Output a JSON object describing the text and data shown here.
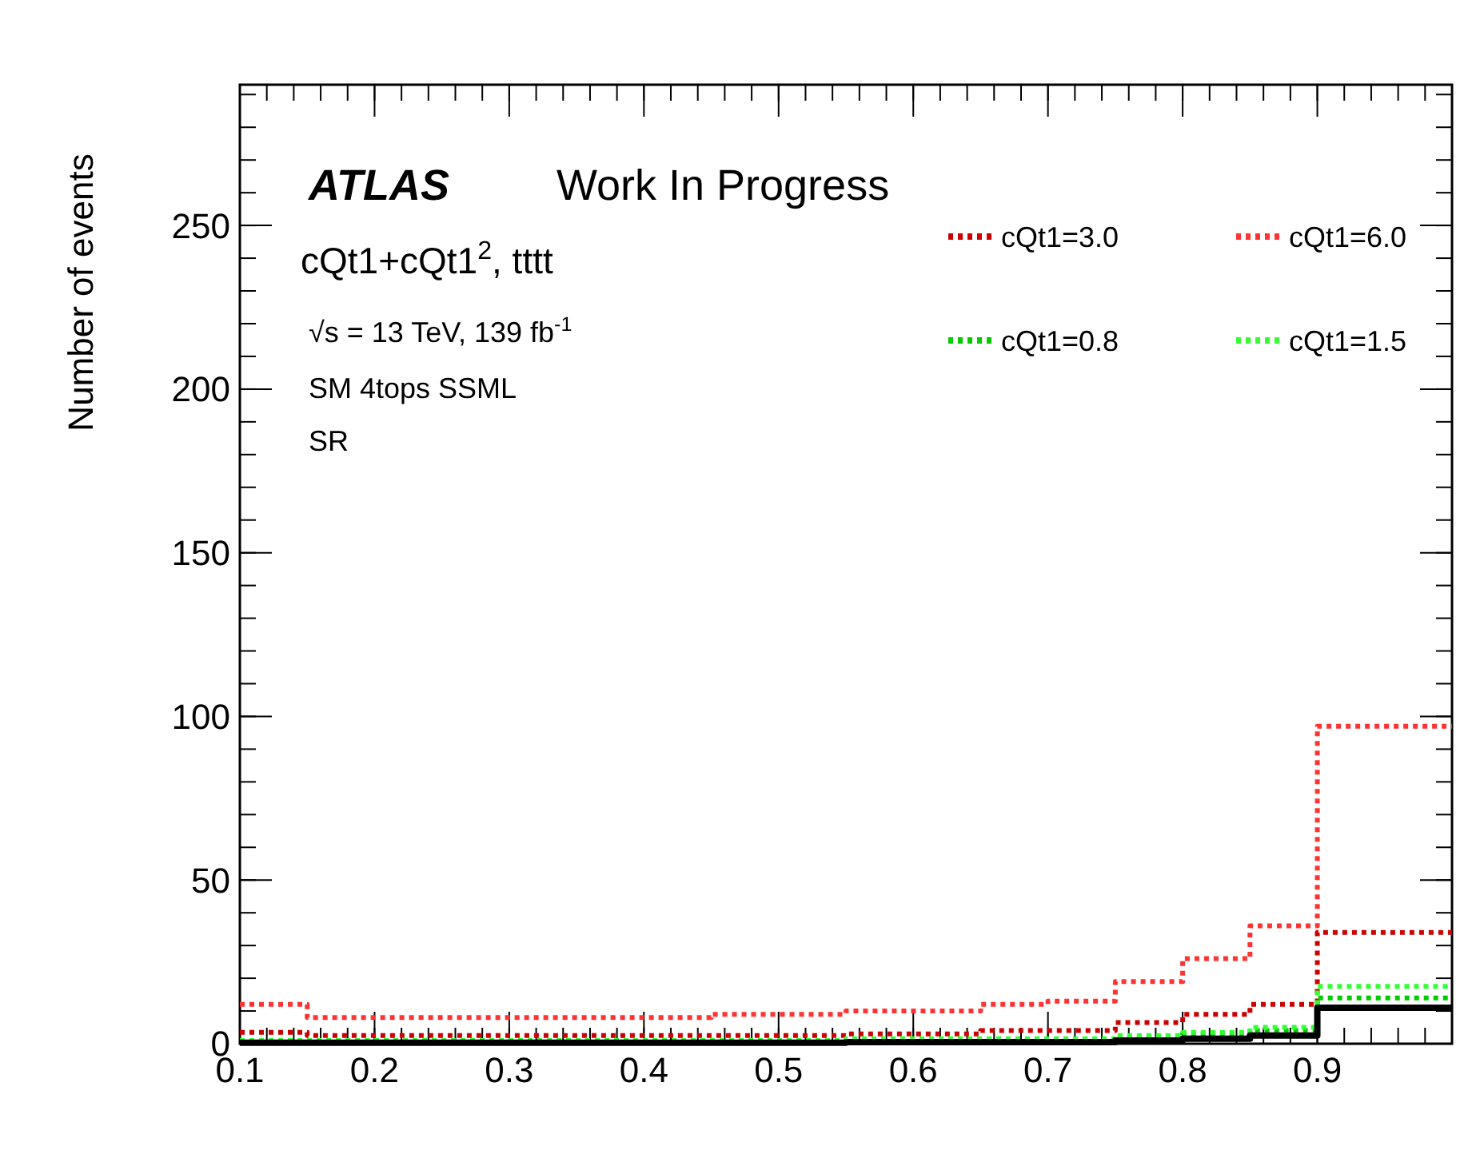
{
  "chart_data": {
    "type": "histogram",
    "ylabel": "Number of events",
    "bins": [
      0.1,
      0.15,
      0.2,
      0.25,
      0.3,
      0.35,
      0.4,
      0.45,
      0.5,
      0.55,
      0.6,
      0.65,
      0.7,
      0.75,
      0.8,
      0.85,
      0.9,
      0.95,
      1.0
    ],
    "series": [
      {
        "name": "cQt1=3.0",
        "color": "#cc0000",
        "line_style": "dotted",
        "values": [
          3.5,
          2.5,
          2.5,
          2.5,
          2.5,
          2.5,
          2.5,
          2.5,
          2.5,
          3,
          3,
          4,
          4,
          6.5,
          9,
          12,
          34,
          34
        ]
      },
      {
        "name": "cQt1=6.0",
        "color": "#ff3333",
        "line_style": "dotted",
        "values": [
          12,
          8,
          8,
          8,
          8,
          8,
          8,
          9,
          9,
          10,
          10,
          12,
          13,
          19,
          26,
          36,
          97,
          97
        ]
      },
      {
        "name": "cQt1=0.8",
        "color": "#00cc00",
        "line_style": "dotted",
        "values": [
          0.5,
          0.5,
          0.5,
          0.5,
          0.5,
          0.5,
          0.5,
          0.5,
          0.5,
          1,
          1,
          1,
          1,
          2,
          3,
          4,
          14,
          14
        ]
      },
      {
        "name": "cQt1=1.5",
        "color": "#33ff33",
        "line_style": "dotted",
        "values": [
          1,
          1,
          1,
          1,
          1,
          1,
          1,
          1,
          1,
          1.5,
          1.5,
          1.5,
          1.5,
          2.5,
          3.5,
          5,
          17.5,
          17.5
        ]
      },
      {
        "color": "#000000",
        "line_style": "solid",
        "values": [
          0.3,
          0.3,
          0.3,
          0.3,
          0.3,
          0.3,
          0.3,
          0.3,
          0.3,
          0.5,
          0.5,
          0.5,
          0.5,
          1,
          1.5,
          2.5,
          11,
          11
        ]
      }
    ],
    "xlim": [
      0.1,
      1.0
    ],
    "xticks": [
      0.1,
      0.2,
      0.3,
      0.4,
      0.5,
      0.6,
      0.7,
      0.8,
      0.9
    ],
    "ylim": [
      0,
      293
    ],
    "yticks": [
      0,
      50,
      100,
      150,
      200,
      250
    ],
    "grid": false,
    "legend": "top right",
    "annotations": [
      "ATLAS",
      "Work In Progress",
      "cQt1+cQt1$^{2}$, tttt",
      "√s = 13 TeV, 139 fb$^{-1}$",
      "SM 4tops SSML",
      "SR"
    ]
  }
}
